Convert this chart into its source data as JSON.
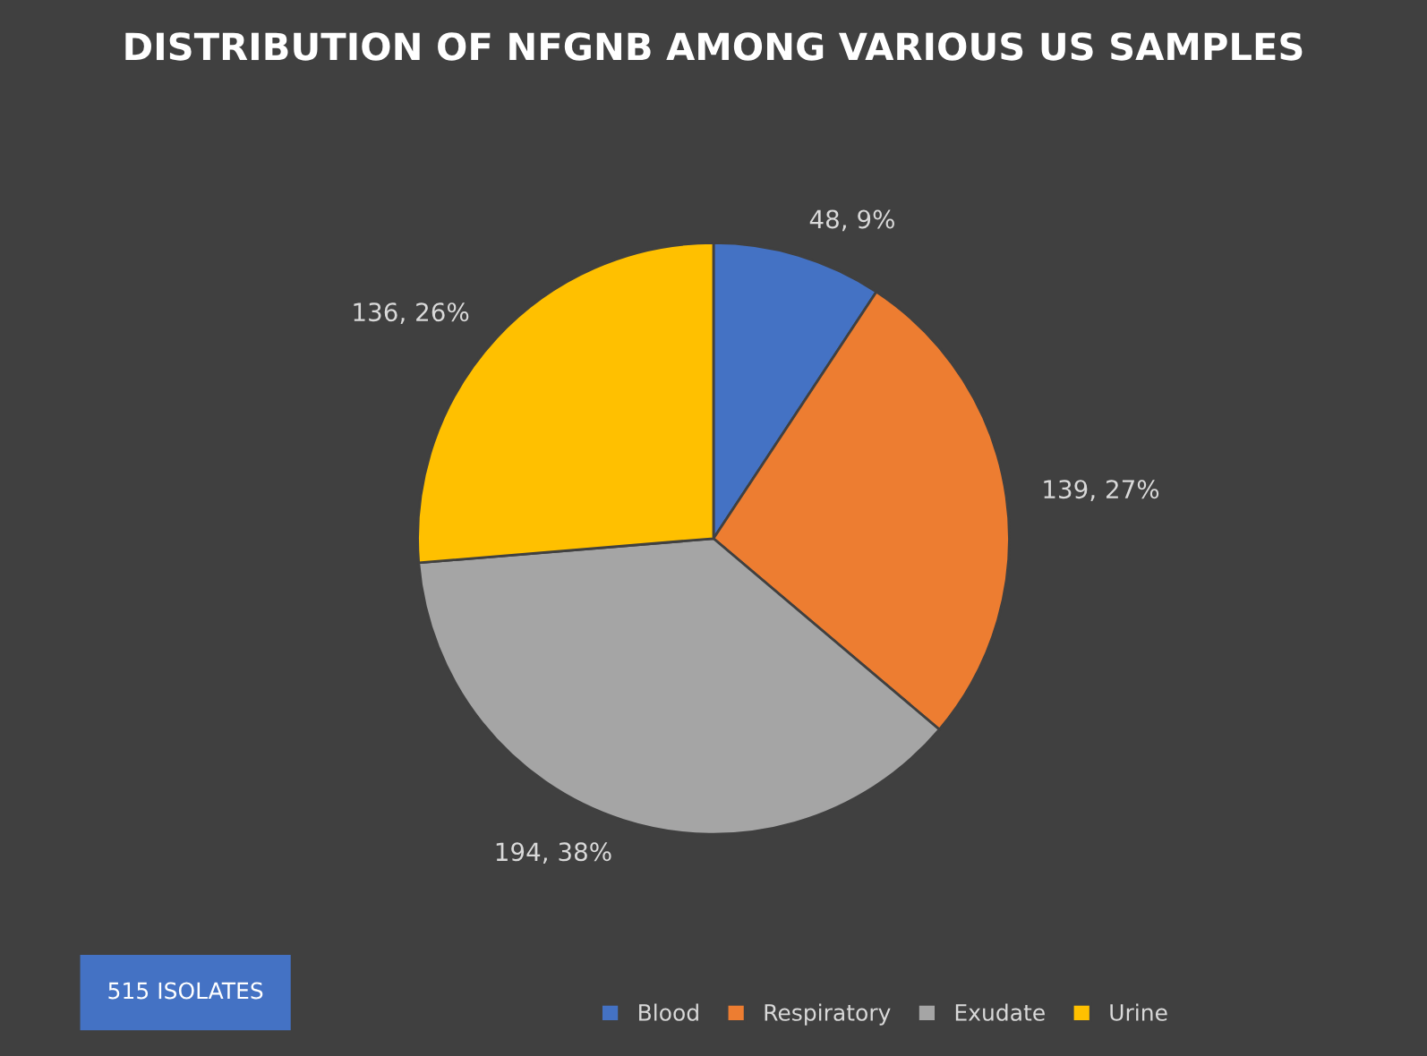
{
  "chart_data": {
    "type": "pie",
    "title": "DISTRIBUTION OF NFGNB AMONG VARIOUS US SAMPLES",
    "categories": [
      "Blood",
      "Respiratory",
      "Exudate",
      "Urine"
    ],
    "values": [
      48,
      139,
      194,
      136
    ],
    "colors": [
      "#4472c4",
      "#ed7d31",
      "#a5a5a5",
      "#ffc000"
    ],
    "value_labels": [
      "48, 9%",
      "139, 27%",
      "194, 38%",
      "136, 26%"
    ],
    "annotations": [
      "515 ISOLATES"
    ],
    "legend": "bottom"
  }
}
